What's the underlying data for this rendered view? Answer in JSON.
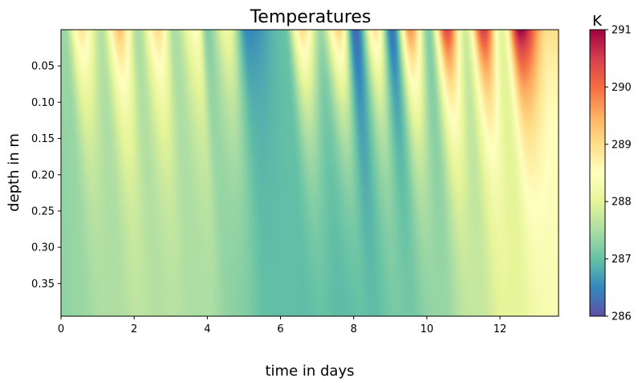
{
  "chart_data": {
    "type": "heatmap",
    "title": "Temperatures",
    "xlabel": "time in days",
    "ylabel": "depth in m",
    "xlim": [
      0,
      13.6
    ],
    "ylim": [
      0.395,
      0.0
    ],
    "xticks": [
      0,
      2,
      4,
      6,
      8,
      10,
      12
    ],
    "yticks": [
      0.05,
      0.1,
      0.15,
      0.2,
      0.25,
      0.3,
      0.35
    ],
    "xtick_labels": [
      "0",
      "2",
      "4",
      "6",
      "8",
      "10",
      "12"
    ],
    "ytick_labels": [
      "0.05",
      "0.10",
      "0.15",
      "0.20",
      "0.25",
      "0.30",
      "0.35"
    ],
    "colormap": "Spectral_r",
    "colorbar": {
      "title": "K",
      "vmin": 286,
      "vmax": 291,
      "ticks": [
        286,
        287,
        288,
        289,
        290,
        291
      ],
      "tick_labels": [
        "286",
        "287",
        "288",
        "289",
        "290",
        "291"
      ]
    },
    "depth_profile": {
      "description_free_values": true,
      "mean_deep_temperature": 287.6,
      "damping_depth_m": 0.12
    },
    "surface_temperature_peaks": [
      {
        "day": 0.55,
        "value": 288.9
      },
      {
        "day": 1.6,
        "value": 289.3
      },
      {
        "day": 2.65,
        "value": 289.0
      },
      {
        "day": 3.7,
        "value": 288.5
      },
      {
        "day": 4.55,
        "value": 288.2
      },
      {
        "day": 6.6,
        "value": 289.0
      },
      {
        "day": 7.6,
        "value": 289.1
      },
      {
        "day": 8.6,
        "value": 288.9
      },
      {
        "day": 9.55,
        "value": 289.7
      },
      {
        "day": 10.55,
        "value": 290.4
      },
      {
        "day": 11.55,
        "value": 290.5
      },
      {
        "day": 12.55,
        "value": 291.0
      },
      {
        "day": 13.3,
        "value": 289.0
      }
    ],
    "surface_temperature_troughs": [
      {
        "day": 0.1,
        "value": 287.4
      },
      {
        "day": 1.1,
        "value": 287.6
      },
      {
        "day": 2.1,
        "value": 287.5
      },
      {
        "day": 3.1,
        "value": 287.5
      },
      {
        "day": 4.0,
        "value": 287.2
      },
      {
        "day": 5.1,
        "value": 286.5
      },
      {
        "day": 6.1,
        "value": 287.0
      },
      {
        "day": 7.1,
        "value": 287.4
      },
      {
        "day": 8.05,
        "value": 286.2
      },
      {
        "day": 9.05,
        "value": 286.3
      },
      {
        "day": 10.05,
        "value": 287.2
      },
      {
        "day": 11.05,
        "value": 287.8
      },
      {
        "day": 12.05,
        "value": 288.0
      }
    ],
    "deep_temperature_trend": [
      {
        "day": 0,
        "value": 287.3
      },
      {
        "day": 2,
        "value": 287.6
      },
      {
        "day": 4,
        "value": 287.5
      },
      {
        "day": 5.5,
        "value": 287.0
      },
      {
        "day": 8,
        "value": 286.9
      },
      {
        "day": 10,
        "value": 287.2
      },
      {
        "day": 12,
        "value": 287.9
      },
      {
        "day": 13.6,
        "value": 288.3
      }
    ]
  }
}
